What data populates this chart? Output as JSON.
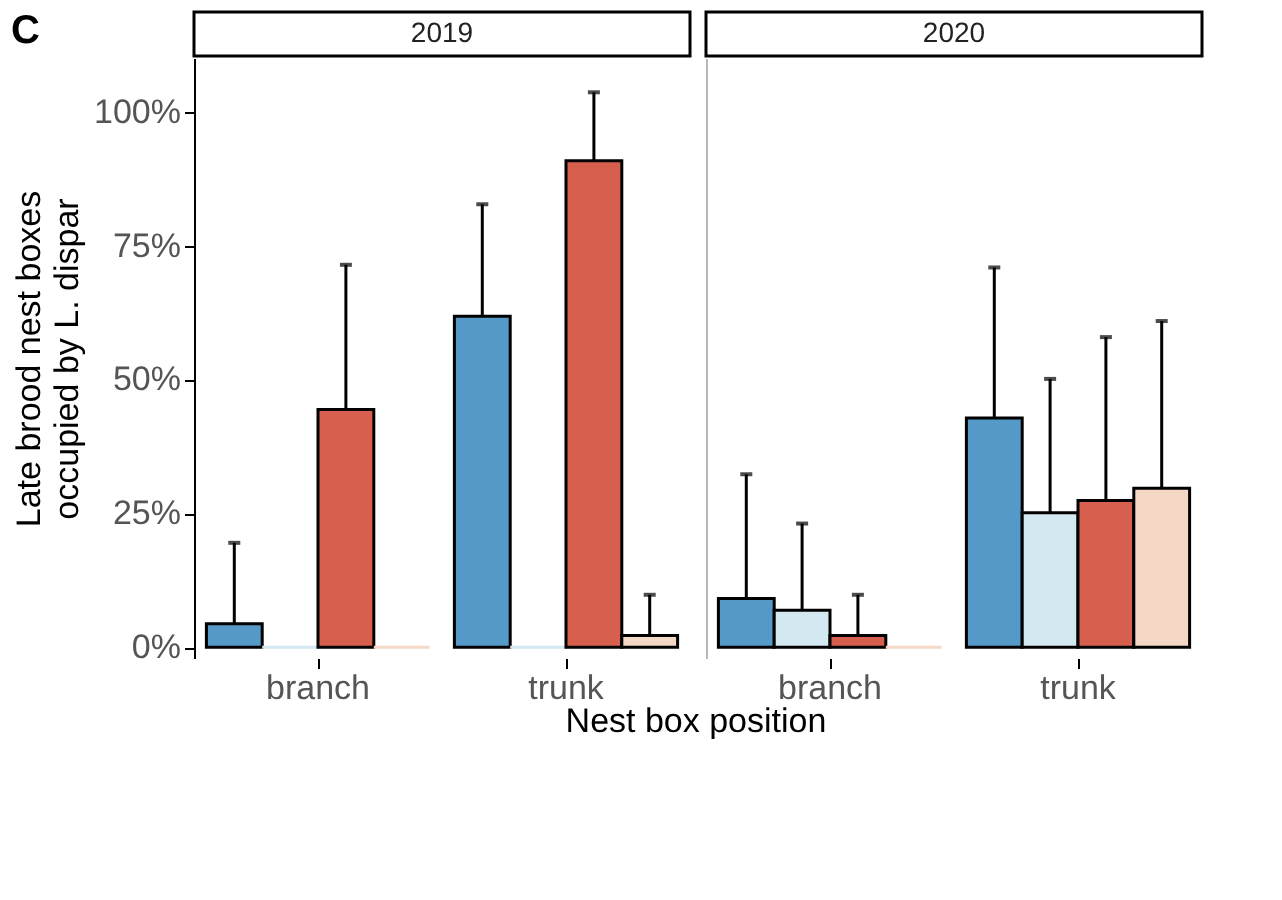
{
  "chart_data": [
    {
      "type": "bar",
      "title": "2019",
      "ylabel": "Late brood nest boxes\noccupied by L. dispar",
      "xlabel": "Nest box position",
      "annotations": [
        "C"
      ],
      "categories": [
        "branch",
        "trunk"
      ],
      "series": [
        {
          "color": "#5499c7",
          "values": [
            4.4,
            61.8
          ],
          "errors": [
            [
              4.4,
              19.5
            ],
            [
              61.8,
              82.7
            ]
          ]
        },
        {
          "color": "#d3e8f0",
          "values": [
            0,
            0
          ],
          "errors": [
            null,
            null
          ]
        },
        {
          "color": "#d6604d",
          "values": [
            44.4,
            90.8
          ],
          "errors": [
            [
              44.4,
              71.4
            ],
            [
              90.8,
              103.6
            ]
          ]
        },
        {
          "color": "#f4d7c4",
          "values": [
            0,
            2.2
          ],
          "errors": [
            null,
            [
              2.2,
              9.8
            ]
          ]
        }
      ],
      "ylim": [
        -2,
        110
      ],
      "yticks": [
        {
          "value": 0,
          "label": "0%"
        },
        {
          "value": 25,
          "label": "25%"
        },
        {
          "value": 50,
          "label": "50%"
        },
        {
          "value": 75,
          "label": "75%"
        },
        {
          "value": 100,
          "label": "100%"
        }
      ],
      "grid": false
    },
    {
      "type": "bar",
      "title": "2020",
      "categories": [
        "branch",
        "trunk"
      ],
      "series": [
        {
          "color": "#5499c7",
          "values": [
            9.1,
            42.8
          ],
          "errors": [
            [
              9.1,
              32.3
            ],
            [
              42.8,
              70.9
            ]
          ]
        },
        {
          "color": "#d3e8f0",
          "values": [
            6.9,
            25.1
          ],
          "errors": [
            [
              6.9,
              23.1
            ],
            [
              25.1,
              50.1
            ]
          ]
        },
        {
          "color": "#d6604d",
          "values": [
            2.2,
            27.4
          ],
          "errors": [
            [
              2.2,
              9.8
            ],
            [
              27.4,
              57.9
            ]
          ]
        },
        {
          "color": "#f4d7c4",
          "values": [
            0,
            29.7
          ],
          "errors": [
            null,
            [
              29.7,
              60.9
            ]
          ]
        }
      ],
      "ylim": [
        -2,
        110
      ],
      "tick_labels": "x",
      "grid": false
    }
  ]
}
